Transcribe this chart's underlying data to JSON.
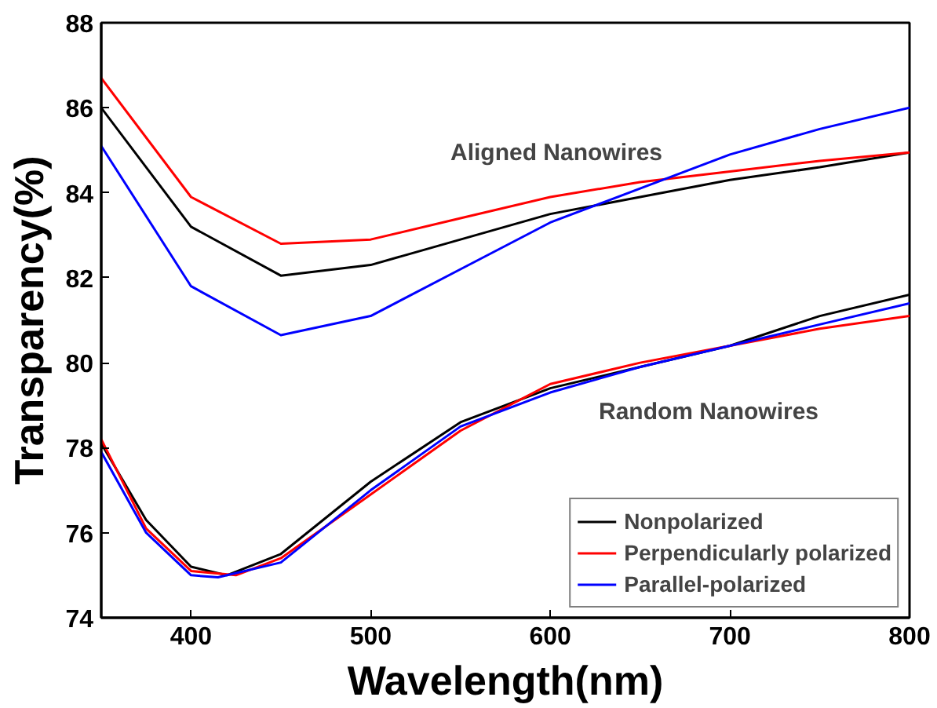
{
  "chart_data": {
    "type": "line",
    "xlabel": "Wavelength(nm)",
    "ylabel": "Transparency(%)",
    "xlim": [
      350,
      800
    ],
    "ylim": [
      74,
      88
    ],
    "xticks": [
      400,
      500,
      600,
      700,
      800
    ],
    "yticks": [
      74,
      76,
      78,
      80,
      82,
      84,
      86,
      88
    ],
    "grid": false,
    "legend": "bottom right",
    "marker": "none",
    "line_style": "solid",
    "annotations": [
      "Aligned Nanowires",
      "Random Nanowires"
    ],
    "series": [
      {
        "name": "Nonpolarized",
        "color": "#000000",
        "x": [
          350,
          400,
          450,
          500,
          550,
          600,
          650,
          700,
          750,
          800
        ],
        "values": [
          86.0,
          83.2,
          82.05,
          82.3,
          82.9,
          83.5,
          83.9,
          84.3,
          84.6,
          84.95
        ]
      },
      {
        "name": "Perpendicularly polarized",
        "color": "#ff0000",
        "x": [
          350,
          400,
          450,
          500,
          550,
          600,
          650,
          700,
          750,
          800
        ],
        "values": [
          86.7,
          83.9,
          82.8,
          82.9,
          83.4,
          83.9,
          84.25,
          84.5,
          84.75,
          84.95
        ]
      },
      {
        "name": "Parallel-polarized",
        "color": "#0000ff",
        "x": [
          350,
          400,
          450,
          500,
          550,
          600,
          650,
          700,
          750,
          800
        ],
        "values": [
          85.1,
          81.8,
          80.65,
          81.1,
          82.2,
          83.3,
          84.1,
          84.9,
          85.5,
          86.0
        ]
      },
      {
        "color": "#000000",
        "x": [
          350,
          375,
          400,
          420,
          450,
          500,
          550,
          600,
          650,
          700,
          750,
          800
        ],
        "values": [
          78.1,
          76.3,
          75.2,
          75.0,
          75.5,
          77.2,
          78.6,
          79.4,
          79.9,
          80.4,
          81.1,
          81.6
        ]
      },
      {
        "color": "#ff0000",
        "x": [
          350,
          375,
          400,
          425,
          450,
          500,
          550,
          600,
          650,
          700,
          750,
          800
        ],
        "values": [
          78.2,
          76.1,
          75.1,
          75.0,
          75.4,
          76.9,
          78.4,
          79.5,
          80.0,
          80.4,
          80.8,
          81.1
        ]
      },
      {
        "color": "#0000ff",
        "x": [
          350,
          375,
          400,
          415,
          450,
          500,
          550,
          600,
          650,
          700,
          750,
          800
        ],
        "values": [
          77.9,
          76.0,
          75.0,
          74.95,
          75.3,
          77.0,
          78.5,
          79.3,
          79.9,
          80.4,
          80.9,
          81.4
        ]
      }
    ]
  }
}
